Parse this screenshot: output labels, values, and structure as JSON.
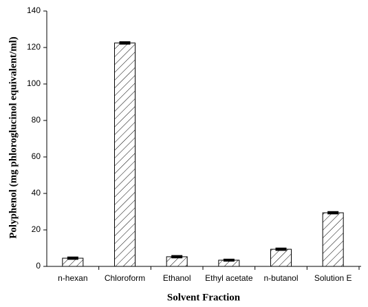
{
  "chart_data": {
    "type": "bar",
    "x_label": "Solvent Fraction",
    "y_label": "Polyphenol (mg phloroglucinol equivalent/ml)",
    "categories": [
      "n-hexan",
      "Chloroform",
      "Ethanol",
      "Ethyl acetate",
      "n-butanol",
      "Solution E"
    ],
    "values": [
      4.5,
      122.5,
      5.3,
      3.4,
      9.4,
      29.4
    ],
    "errors": [
      0.5,
      0.5,
      0.5,
      0.4,
      0.5,
      0.5
    ],
    "color": "#000000",
    "ylim": [
      0,
      140
    ],
    "yticks": [
      0,
      20,
      40,
      60,
      80,
      100,
      120,
      140
    ]
  }
}
